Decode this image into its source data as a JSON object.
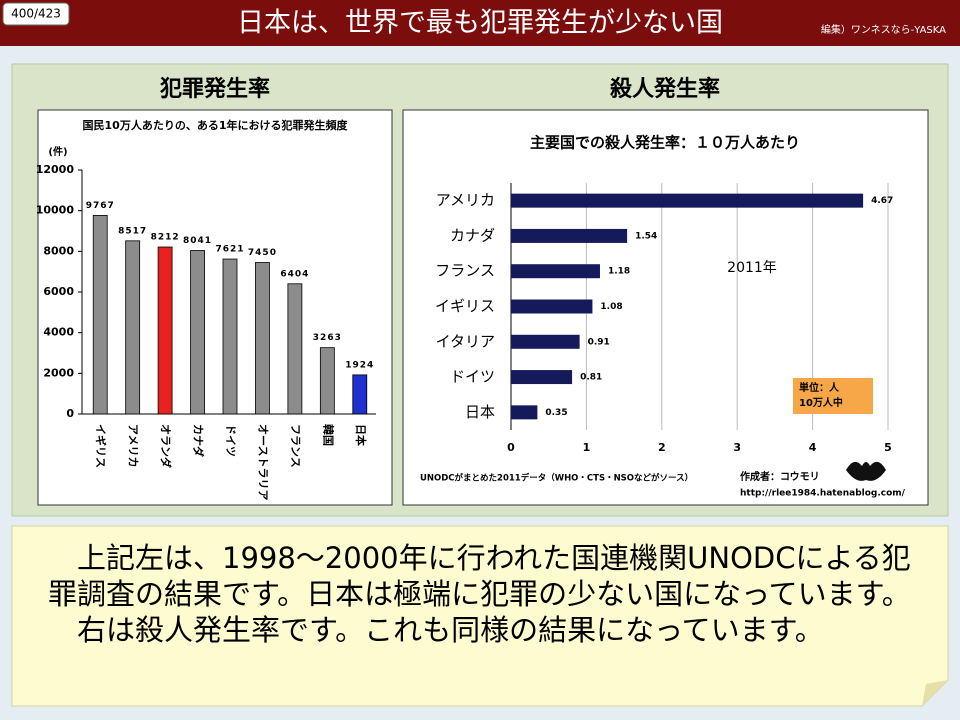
{
  "page_number": "400/423",
  "header": {
    "title": "日本は、世界で最も犯罪発生が少ない国",
    "credit": "編集）ワンネスなら-YASKA"
  },
  "chart_data": [
    {
      "type": "bar",
      "heading": "犯罪発生率",
      "title": "国民10万人あたりの、ある1年における犯罪発生頻度",
      "y_label": "(件)",
      "categories": [
        "イギリス",
        "アメリカ",
        "オランダ",
        "カナダ",
        "ドイツ",
        "オーストラリア",
        "フランス",
        "韓国",
        "日本"
      ],
      "values": [
        9767,
        8517,
        8212,
        8041,
        7621,
        7450,
        6404,
        3263,
        1924
      ],
      "colors": [
        "#8c8c8c",
        "#8c8c8c",
        "#e8231f",
        "#8c8c8c",
        "#8c8c8c",
        "#8c8c8c",
        "#8c8c8c",
        "#8c8c8c",
        "#1f2fd0"
      ],
      "ylim": [
        0,
        12000
      ],
      "yticks": [
        0,
        2000,
        4000,
        6000,
        8000,
        10000,
        12000
      ]
    },
    {
      "type": "barh",
      "heading": "殺人発生率",
      "title": "主要国での殺人発生率：１０万人あたり",
      "categories": [
        "アメリカ",
        "カナダ",
        "フランス",
        "イギリス",
        "イタリア",
        "ドイツ",
        "日本"
      ],
      "values": [
        4.67,
        1.54,
        1.18,
        1.08,
        0.91,
        0.81,
        0.35
      ],
      "color": "#141a5a",
      "xlim": [
        0,
        5
      ],
      "xticks": [
        0,
        1,
        2,
        3,
        4,
        5
      ],
      "grid": true,
      "annotation": "2011年",
      "unit_note": [
        "単位：人",
        "10万人中"
      ],
      "source": "UNODCがまとめた2011データ（WHO・CTS・NSOなどがソース）",
      "author": "作成者：コウモリ",
      "url": "http://rlee1984.hatenablog.com/"
    }
  ],
  "body": {
    "paragraphs": [
      "上記左は、1998～2000年に行われた国連機関UNODCによる犯罪調査の結果です。日本は極端に犯罪の少ない国になっています。",
      "右は殺人発生率です。これも同様の結果になっています。"
    ]
  }
}
